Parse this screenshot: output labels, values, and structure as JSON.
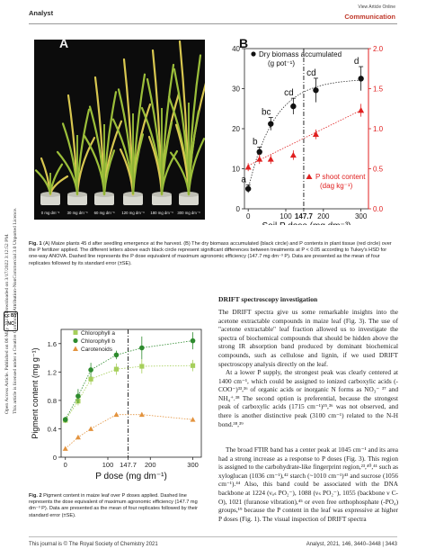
{
  "header": {
    "journal": "Analyst",
    "article_type": "Communication",
    "top_note": "View Article Online"
  },
  "sidebar": {
    "line1": "Open Access Article. Published on 06 May 2021. Downloaded on 3/17/2022 3:12:52 PM.",
    "line2": "This article is licensed under a Creative Commons Attribution-NonCommercial 3.0 Unported Licence.",
    "badge": "cc BY NC"
  },
  "figure1": {
    "panel_a": "A",
    "panel_b": "B",
    "photo_labels": [
      "0 mg dm⁻³",
      "30 mg dm⁻³",
      "60 mg dm⁻³",
      "120 mg dm⁻³",
      "180 mg dm⁻³",
      "300 mg dm⁻³"
    ],
    "caption_label": "Fig. 1",
    "caption": "(A) Maize plants 45 d after seedling emergence at the harvest. (B) The dry biomass accumulated (black circle) and P contents in plant tissue (red circle) over the P fertilizer applied. The different letters above each black circle represent significant differences between treatments at P < 0.05 according to Tukey's HSD for one-way ANOVA. Dashed line represents the P dose equivalent of maximum agronomic efficiency (147.7 mg dm⁻³ P). Data are presented as the mean of four replicates followed by its standard error (±SE)."
  },
  "figure2": {
    "caption_label": "Fig. 2",
    "caption": "Pigment content in maize leaf over P doses applied. Dashed line represents the dose equivalent of maximum agronomic efficiency (147.7 mg dm⁻³ P). Data are presented as the mean of four replicates followed by their standard error (±SE)."
  },
  "body": {
    "section_title": "DRIFT spectroscopy investigation",
    "para1": "The DRIFT spectra give us some remarkable insights into the acetone extractable compounds in maize leaf (Fig. 3). The use of \"acetone extractable\" leaf fraction allowed us to investigate the spectra of biochemical compounds that should be hidden above the strong IR absorption band produced by dominant biochemical compounds, such as cellulose and lignin, if we used DRIFT spectroscopy analysis directly on the leaf.",
    "para2": "At a lower P supply, the strongest peak was clearly centered at 1400 cm⁻¹, which could be assigned to ionized carboxylic acids (-COO⁻)³³,³⁶ of organic acids or inorganic N forms as NO₃⁻ ³⁷ and NH₄⁺.³⁸ The second option is preferential, because the strongest peak of carboxylic acids (1715 cm⁻¹)³⁵,³⁶ was not observed, and there is another distinctive peak (3100 cm⁻¹) related to the N-H bond.³⁸,³⁹",
    "para3": "The broad FTIR band has a center peak at 1045 cm⁻¹ and its area had a strong increase as a response to P doses (Fig. 3). This region is assigned to the carbohydrate-like fingerprint region,²³,⁴⁰,⁴¹ such as xyloglucan (1036 cm⁻¹),⁴² starch (~1010 cm⁻¹)⁴³ and sucrose (1056 cm⁻¹).⁴⁴ Also, this band could be associated with the DNA backbone at 1224 (νₐₛ PO₂⁻), 1088 (νₛ PO₂⁻), 1055 (backbone ν C-O), 1021 (furanose vibration),⁴⁵ or even free orthophosphate (-PO₄) groups,¹⁹ because the P content in the leaf was expressive at higher P doses (Fig. 1). The visual inspection of DRIFT spectra"
  },
  "footer": {
    "left": "This journal is © The Royal Society of Chemistry 2021",
    "right": "Analyst, 2021, 146, 3440–3448 | 3443"
  },
  "colors": {
    "accent_red": "#c0392b",
    "chl_a": "#a6cf5b",
    "chl_b": "#2e8b2e",
    "carotenoids": "#e3933e",
    "biomass": "#111111",
    "p_content": "#e02020"
  },
  "chart_data": [
    {
      "type": "scatter",
      "panel": "B",
      "xlabel": "Soil P dose (mg dm⁻³)",
      "ylabel_left": "",
      "ylabel_right": "",
      "x_ticks": [
        "0",
        "100",
        "147.7",
        "200",
        "300"
      ],
      "y_left_ticks": [
        0,
        10,
        20,
        30,
        40
      ],
      "y_right_ticks": [
        "0.0",
        "0.5",
        "1.0",
        "1.5",
        "2.0"
      ],
      "ylim_left": [
        0,
        40
      ],
      "ylim_right": [
        0,
        2.0
      ],
      "xlim": [
        -10,
        320
      ],
      "dashed_line_x": 147.7,
      "series": [
        {
          "name": "Dry biomass accumulated (g pot⁻¹)",
          "axis": "left",
          "marker": "circle",
          "x": [
            0,
            30,
            60,
            120,
            180,
            300
          ],
          "y": [
            5.0,
            14.2,
            21.2,
            25.6,
            29.6,
            32.5
          ],
          "err": [
            1.0,
            1.2,
            1.6,
            2.0,
            3.0,
            3.0
          ],
          "letters": [
            "a",
            "b",
            "bc",
            "cd",
            "cd",
            "d"
          ]
        },
        {
          "name": "P shoot content (dag kg⁻¹)",
          "axis": "right",
          "marker": "triangle",
          "x": [
            0,
            30,
            60,
            120,
            180,
            300
          ],
          "y": [
            0.52,
            0.62,
            0.62,
            0.67,
            0.93,
            1.23
          ],
          "err": [
            0.05,
            0.06,
            0.06,
            0.06,
            0.06,
            0.08
          ]
        }
      ]
    },
    {
      "type": "line",
      "panel": "Fig. 2",
      "xlabel": "P dose (mg dm⁻¹)",
      "ylabel": "Pigment content (mg g⁻¹)",
      "x_ticks": [
        "0",
        "100",
        "147.7",
        "200",
        "300"
      ],
      "y_ticks": [
        "0",
        "0.4",
        "0.8",
        "1.2",
        "1.6"
      ],
      "ylim": [
        0,
        1.8
      ],
      "xlim": [
        -10,
        320
      ],
      "dashed_line_x": 147.7,
      "series": [
        {
          "name": "Chlorophyll a",
          "marker": "square",
          "x": [
            0,
            30,
            60,
            120,
            180,
            300
          ],
          "y": [
            0.52,
            0.79,
            1.1,
            1.24,
            1.28,
            1.29
          ],
          "err": [
            0.04,
            0.06,
            0.08,
            0.08,
            0.1,
            0.08
          ]
        },
        {
          "name": "Chlorophyll b",
          "marker": "circle",
          "x": [
            0,
            30,
            60,
            120,
            180,
            300
          ],
          "y": [
            0.53,
            0.86,
            1.23,
            1.44,
            1.54,
            1.64
          ],
          "err": [
            0.04,
            0.1,
            0.1,
            0.06,
            0.16,
            0.12
          ]
        },
        {
          "name": "Carotenoids",
          "marker": "triangle",
          "x": [
            0,
            30,
            60,
            120,
            180,
            300
          ],
          "y": [
            0.12,
            0.28,
            0.4,
            0.6,
            0.6,
            0.53
          ],
          "err": [
            0.02,
            0.03,
            0.03,
            0.03,
            0.03,
            0.03
          ]
        }
      ]
    }
  ]
}
